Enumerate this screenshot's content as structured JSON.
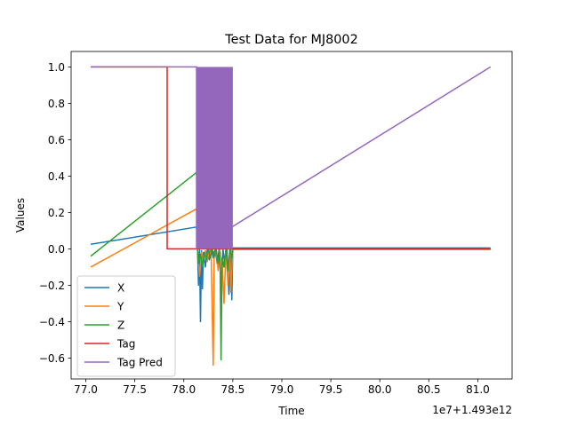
{
  "chart_data": {
    "type": "line",
    "title": "Test Data for MJ8002",
    "xlabel": "Time",
    "ylabel": "Values",
    "x_offset_label": "1e7+1.493e12",
    "xlim": [
      76.85,
      81.35
    ],
    "ylim": [
      -0.715,
      1.085
    ],
    "xticks": [
      77.0,
      77.5,
      78.0,
      78.5,
      79.0,
      79.5,
      80.0,
      80.5,
      81.0
    ],
    "xtick_labels": [
      "77.0",
      "77.5",
      "78.0",
      "78.5",
      "79.0",
      "79.5",
      "80.0",
      "80.5",
      "81.0"
    ],
    "yticks": [
      -0.6,
      -0.4,
      -0.2,
      0.0,
      0.2,
      0.4,
      0.6,
      0.8,
      1.0
    ],
    "ytick_labels": [
      "−0.6",
      "−0.4",
      "−0.2",
      "0.0",
      "0.2",
      "0.4",
      "0.6",
      "0.8",
      "1.0"
    ],
    "grid": false,
    "legend_position": "lower-left",
    "series": [
      {
        "name": "X",
        "color": "#1f77b4",
        "points": [
          [
            77.05,
            0.025
          ],
          [
            78.13,
            0.12
          ],
          [
            78.14,
            -0.01
          ],
          [
            78.15,
            -0.2
          ],
          [
            78.16,
            0.0
          ],
          [
            78.17,
            -0.4
          ],
          [
            78.18,
            -0.01
          ],
          [
            78.19,
            -0.22
          ],
          [
            78.2,
            -0.02
          ],
          [
            78.22,
            -0.1
          ],
          [
            78.24,
            0.0
          ],
          [
            78.26,
            -0.06
          ],
          [
            78.28,
            0.0
          ],
          [
            78.3,
            -0.05
          ],
          [
            78.32,
            0.0
          ],
          [
            78.34,
            -0.08
          ],
          [
            78.36,
            0.0
          ],
          [
            78.38,
            -0.2
          ],
          [
            78.4,
            0.0
          ],
          [
            78.42,
            -0.1
          ],
          [
            78.44,
            0.0
          ],
          [
            78.46,
            -0.25
          ],
          [
            78.48,
            0.0
          ],
          [
            78.49,
            -0.28
          ],
          [
            78.5,
            0.005
          ],
          [
            81.13,
            0.005
          ]
        ]
      },
      {
        "name": "Y",
        "color": "#ff7f0e",
        "points": [
          [
            77.05,
            -0.1
          ],
          [
            78.13,
            0.22
          ],
          [
            78.14,
            0.0
          ],
          [
            78.16,
            -0.15
          ],
          [
            78.18,
            -0.02
          ],
          [
            78.2,
            -0.05
          ],
          [
            78.22,
            -0.01
          ],
          [
            78.24,
            -0.07
          ],
          [
            78.26,
            0.0
          ],
          [
            78.28,
            -0.06
          ],
          [
            78.3,
            -0.64
          ],
          [
            78.31,
            -0.05
          ],
          [
            78.33,
            0.0
          ],
          [
            78.35,
            -0.12
          ],
          [
            78.37,
            0.0
          ],
          [
            78.38,
            -0.45
          ],
          [
            78.39,
            -0.05
          ],
          [
            78.41,
            -0.3
          ],
          [
            78.43,
            0.0
          ],
          [
            78.45,
            -0.2
          ],
          [
            78.47,
            0.0
          ],
          [
            78.48,
            -0.24
          ],
          [
            78.5,
            -0.003
          ],
          [
            81.13,
            -0.003
          ]
        ]
      },
      {
        "name": "Z",
        "color": "#2ca02c",
        "points": [
          [
            77.05,
            -0.04
          ],
          [
            78.13,
            0.42
          ],
          [
            78.14,
            0.0
          ],
          [
            78.15,
            -0.08
          ],
          [
            78.17,
            -0.03
          ],
          [
            78.19,
            -0.1
          ],
          [
            78.21,
            -0.02
          ],
          [
            78.23,
            -0.06
          ],
          [
            78.25,
            0.0
          ],
          [
            78.27,
            -0.05
          ],
          [
            78.29,
            0.0
          ],
          [
            78.31,
            -0.04
          ],
          [
            78.33,
            0.0
          ],
          [
            78.35,
            -0.08
          ],
          [
            78.37,
            -0.02
          ],
          [
            78.38,
            -0.61
          ],
          [
            78.39,
            -0.05
          ],
          [
            78.41,
            -0.1
          ],
          [
            78.43,
            0.0
          ],
          [
            78.45,
            -0.12
          ],
          [
            78.47,
            0.0
          ],
          [
            78.49,
            -0.05
          ],
          [
            78.5,
            -0.001
          ],
          [
            81.13,
            -0.001
          ]
        ]
      },
      {
        "name": "Tag",
        "color": "#d62728",
        "points": [
          [
            77.05,
            1.0
          ],
          [
            77.83,
            1.0
          ],
          [
            77.83,
            0.0
          ],
          [
            81.13,
            0.0
          ]
        ]
      },
      {
        "name": "Tag Pred",
        "color": "#9467bd",
        "points": [
          [
            77.05,
            1.0
          ],
          [
            78.13,
            1.0
          ],
          [
            78.13,
            0.0
          ],
          [
            81.13,
            1.0
          ]
        ],
        "filled_band": [
          78.13,
          78.5,
          0.0,
          1.0
        ]
      }
    ]
  }
}
